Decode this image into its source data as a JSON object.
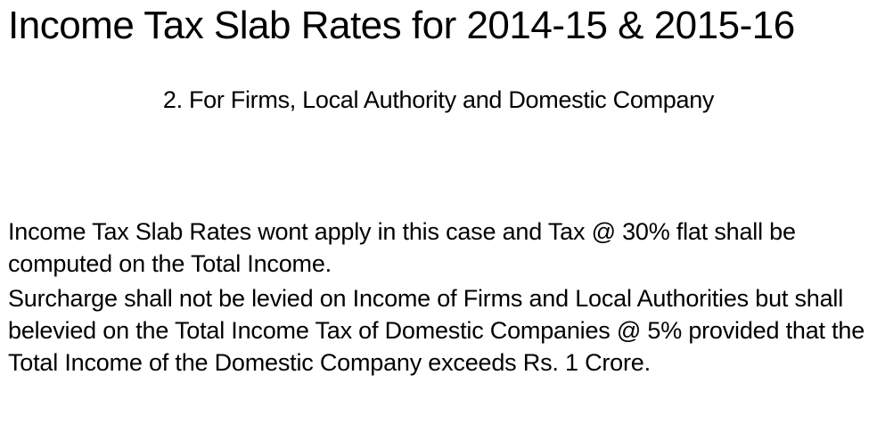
{
  "slide": {
    "title": "Income Tax Slab Rates for 2014-15 & 2015-16",
    "subtitle": "2. For Firms, Local Authority and Domestic Company",
    "paragraphs": [
      "Income Tax Slab Rates wont apply in this case and Tax @ 30% flat shall be computed on the Total Income.",
      "Surcharge shall not be levied on Income of Firms and Local Authorities but shall belevied on the Total Income Tax of Domestic Companies @ 5% provided that the Total Income of the Domestic Company exceeds Rs. 1 Crore."
    ]
  }
}
